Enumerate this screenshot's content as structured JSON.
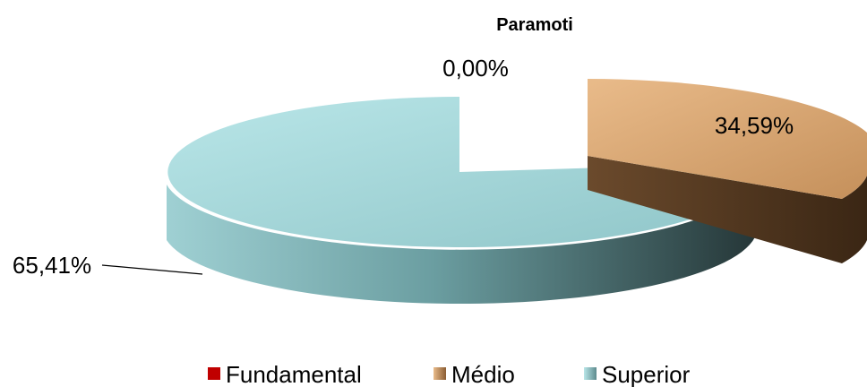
{
  "chart_data": {
    "type": "pie",
    "variant": "3d-exploded",
    "title": "Paramoti",
    "series": [
      {
        "name": "",
        "labels": [
          "Fundamental",
          "Médio",
          "Superior"
        ],
        "values": [
          0.0,
          34.59,
          65.41
        ],
        "value_labels": [
          "0,00%",
          "34,59%",
          "65,41%"
        ]
      }
    ],
    "colors": {
      "Fundamental": "#c00000",
      "Médio": "#d9a46c",
      "Superior": "#a9dde0"
    },
    "legend": {
      "position": "bottom",
      "entries": [
        "Fundamental",
        "Médio",
        "Superior"
      ]
    }
  }
}
